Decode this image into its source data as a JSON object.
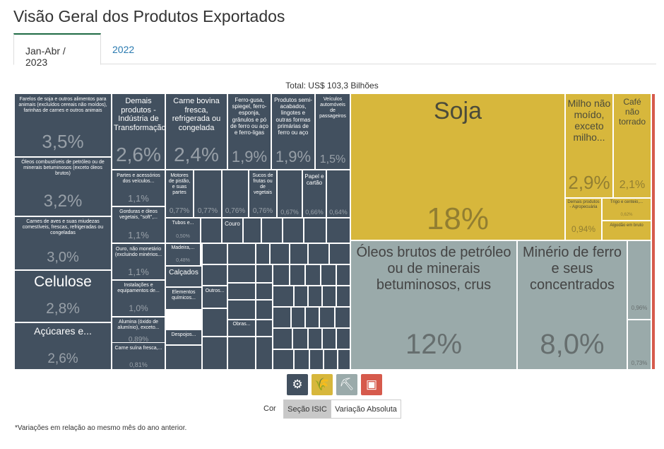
{
  "page": {
    "title": "Visão Geral dos Produtos Exportados",
    "tabs": [
      {
        "label": "Jan-Abr / 2023",
        "active": true
      },
      {
        "label": "2022",
        "active": false
      }
    ],
    "total": "Total: US$ 103,3 Bilhões",
    "color_label": "Cor",
    "color_buttons": [
      {
        "label": "Seção ISIC",
        "active": true
      },
      {
        "label": "Variação Absoluta",
        "active": false
      }
    ],
    "footnote": "*Variações em relação ao mesmo mês do ano anterior.",
    "icons": [
      {
        "name": "industry-gears-icon",
        "color": "#42505f",
        "glyph": "⚙"
      },
      {
        "name": "agriculture-wheat-icon",
        "color": "#d7b73c",
        "glyph": "🌾"
      },
      {
        "name": "mining-pickaxe-icon",
        "color": "#9aaaaa",
        "glyph": "⛏"
      },
      {
        "name": "other-box-icon",
        "color": "#d65a4c",
        "glyph": "▣"
      }
    ]
  },
  "chart_data": {
    "type": "treemap",
    "total": "US$ 103,3 Bilhões",
    "sections": [
      {
        "name": "Indústria de Transformação",
        "color": "#42505f"
      },
      {
        "name": "Agropecuária",
        "color": "#d7b73c"
      },
      {
        "name": "Indústria Extrativa",
        "color": "#9aaaaa"
      },
      {
        "name": "Outros",
        "color": "#d65a4c"
      }
    ],
    "items": [
      {
        "label": "Farelos de soja e outros alimentos para animais (excluídos cereais não moídos), farinhas de carnes e outros animais",
        "value": "3,5%",
        "section": "Indústria de Transformação"
      },
      {
        "label": "Óleos combustíveis de petróleo ou de minerais betuminosos (exceto óleos brutos)",
        "value": "3,2%",
        "section": "Indústria de Transformação"
      },
      {
        "label": "Carnes de aves e suas miudezas comestíveis, frescas, refrigeradas ou congeladas",
        "value": "3,0%",
        "section": "Indústria de Transformação"
      },
      {
        "label": "Celulose",
        "value": "2,8%",
        "section": "Indústria de Transformação"
      },
      {
        "label": "Açúcares e...",
        "value": "2,6%",
        "section": "Indústria de Transformação"
      },
      {
        "label": "Demais produtos - Indústria de Transformação",
        "value": "2,6%",
        "section": "Indústria de Transformação"
      },
      {
        "label": "Carne bovina fresca, refrigerada ou congelada",
        "value": "2,4%",
        "section": "Indústria de Transformação"
      },
      {
        "label": "Ferro-gusa, spiegel, ferro-esponja, grânulos e pó de ferro ou aço e ferro-ligas",
        "value": "1,9%",
        "section": "Indústria de Transformação"
      },
      {
        "label": "Produtos semi-acabados, lingotes e outras formas primárias de ferro ou aço",
        "value": "1,9%",
        "section": "Indústria de Transformação"
      },
      {
        "label": "Veículos automóveis de passageiros",
        "value": "1,5%",
        "section": "Indústria de Transformação"
      },
      {
        "label": "Partes e acessórios dos veículos...",
        "value": "1,1%",
        "section": "Indústria de Transformação"
      },
      {
        "label": "Gorduras e óleos vegetais, \"soft\",...",
        "value": "1,1%",
        "section": "Indústria de Transformação"
      },
      {
        "label": "Ouro, não monetário (excluindo minérios...",
        "value": "1,1%",
        "section": "Indústria de Transformação"
      },
      {
        "label": "Instalações e equipamentos de...",
        "value": "1,0%",
        "section": "Indústria de Transformação"
      },
      {
        "label": "Alumina (óxido de alumínio), exceto...",
        "value": "0,89%",
        "section": "Indústria de Transformação"
      },
      {
        "label": "Carne suína fresca,...",
        "value": "0,81%",
        "section": "Indústria de Transformação"
      },
      {
        "label": "Motores de pistão, e suas partes",
        "value": "0,77%",
        "section": "Indústria de Transformação"
      },
      {
        "label": "",
        "value": "0,77%",
        "section": "Indústria de Transformação"
      },
      {
        "label": "",
        "value": "0,76%",
        "section": "Indústria de Transformação"
      },
      {
        "label": "Sucos de frutas ou de vegetais",
        "value": "0,76%",
        "section": "Indústria de Transformação"
      },
      {
        "label": "",
        "value": "0,67%",
        "section": "Indústria de Transformação"
      },
      {
        "label": "Papel e cartão",
        "value": "0,66%",
        "section": "Indústria de Transformação"
      },
      {
        "label": "",
        "value": "0,64%",
        "section": "Indústria de Transformação"
      },
      {
        "label": "Tubos e...",
        "value": "0,50%",
        "section": "Indústria de Transformação"
      },
      {
        "label": "Couro",
        "value": "",
        "section": "Indústria de Transformação"
      },
      {
        "label": "Madeira,...",
        "value": "0,48%",
        "section": "Indústria de Transformação"
      },
      {
        "label": "Calçados",
        "value": "",
        "section": "Indústria de Transformação"
      },
      {
        "label": "Elementos químicos...",
        "value": "",
        "section": "Indústria de Transformação"
      },
      {
        "label": "Outros...",
        "value": "",
        "section": "Indústria de Transformação"
      },
      {
        "label": "Obras...",
        "value": "",
        "section": "Indústria de Transformação"
      },
      {
        "label": "Despojos...",
        "value": "",
        "section": "Indústria de Transformação"
      },
      {
        "label": "Soja",
        "value": "18%",
        "section": "Agropecuária"
      },
      {
        "label": "Milho não moído, exceto milho...",
        "value": "2,9%",
        "section": "Agropecuária"
      },
      {
        "label": "Café não torrado",
        "value": "2,1%",
        "section": "Agropecuária"
      },
      {
        "label": "Demais produtos - Agropecuária",
        "value": "0,94%",
        "section": "Agropecuária"
      },
      {
        "label": "Trigo e centeio,...",
        "value": "0,62%",
        "section": "Agropecuária"
      },
      {
        "label": "Algodão em bruto",
        "value": "",
        "section": "Agropecuária"
      },
      {
        "label": "Óleos brutos de petróleo ou de minerais betuminosos, crus",
        "value": "12%",
        "section": "Indústria Extrativa"
      },
      {
        "label": "Minério de ferro e seus concentrados",
        "value": "8,0%",
        "section": "Indústria Extrativa"
      },
      {
        "label": "",
        "value": "0,96%",
        "section": "Indústria Extrativa"
      },
      {
        "label": "",
        "value": "0,73%",
        "section": "Indústria Extrativa"
      }
    ]
  }
}
